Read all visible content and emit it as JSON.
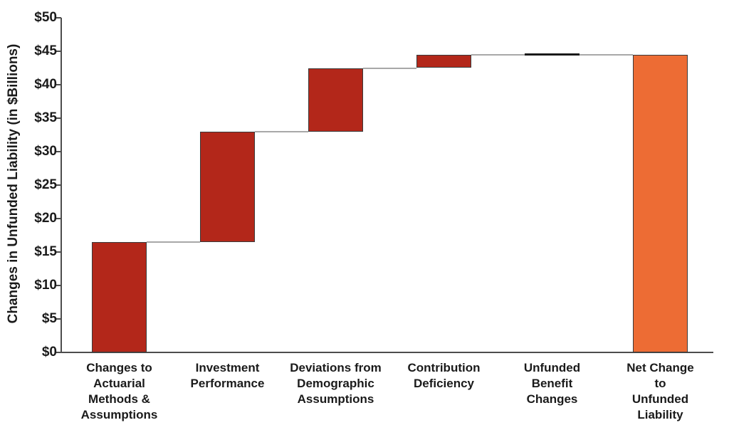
{
  "chart_data": {
    "type": "bar",
    "subtype": "waterfall",
    "title": "",
    "ylabel": "Changes in Unfunded Liability (in $Billions)",
    "xlabel": "",
    "ylim": [
      0,
      50
    ],
    "grid": false,
    "legend_position": "none",
    "yticks": [
      {
        "value": 0,
        "label": "$0"
      },
      {
        "value": 5,
        "label": "$5"
      },
      {
        "value": 10,
        "label": "$10"
      },
      {
        "value": 15,
        "label": "$15"
      },
      {
        "value": 20,
        "label": "$20"
      },
      {
        "value": 25,
        "label": "$25"
      },
      {
        "value": 30,
        "label": "$30"
      },
      {
        "value": 35,
        "label": "$35"
      },
      {
        "value": 40,
        "label": "$40"
      },
      {
        "value": 45,
        "label": "$45"
      },
      {
        "value": 50,
        "label": "$50"
      }
    ],
    "categories": [
      "Changes to Actuarial Methods & Assumptions",
      "Investment Performance",
      "Deviations from Demographic Assumptions",
      "Contribution Deficiency",
      "Unfunded Benefit Changes",
      "Net Change to Unfunded Liability"
    ],
    "bars": [
      {
        "category": "Changes to Actuarial Methods & Assumptions",
        "label_lines": [
          "Changes to",
          "Actuarial",
          "Methods &",
          "Assumptions"
        ],
        "start": 0,
        "end": 16.5,
        "value": 16.5,
        "role": "increase",
        "color": "#B3271A"
      },
      {
        "category": "Investment Performance",
        "label_lines": [
          "Investment",
          "Performance"
        ],
        "start": 16.5,
        "end": 33.0,
        "value": 16.5,
        "role": "increase",
        "color": "#B3271A"
      },
      {
        "category": "Deviations from Demographic Assumptions",
        "label_lines": [
          "Deviations from",
          "Demographic",
          "Assumptions"
        ],
        "start": 33.0,
        "end": 42.5,
        "value": 9.5,
        "role": "increase",
        "color": "#B3271A"
      },
      {
        "category": "Contribution Deficiency",
        "label_lines": [
          "Contribution",
          "Deficiency"
        ],
        "start": 42.5,
        "end": 44.5,
        "value": 2.0,
        "role": "increase",
        "color": "#B3271A"
      },
      {
        "category": "Unfunded Benefit Changes",
        "label_lines": [
          "Unfunded",
          "Benefit",
          "Changes"
        ],
        "start": 44.5,
        "end": 44.5,
        "value": 0.0,
        "role": "flat",
        "color": "#1A1A1A"
      },
      {
        "category": "Net Change to Unfunded Liability",
        "label_lines": [
          "Net Change",
          "to",
          "Unfunded",
          "Liability"
        ],
        "start": 0,
        "end": 44.5,
        "value": 44.5,
        "role": "total",
        "color": "#ED6C34"
      }
    ],
    "colors": {
      "increase_fill": "#B3271A",
      "total_fill": "#ED6C34",
      "flat_fill": "#1A1A1A",
      "bar_border": "#3A3A3A",
      "connector": "#A8A8A8",
      "axis": "#4D4D4D",
      "text": "#1A1A1A",
      "background": "#FFFFFF"
    }
  }
}
